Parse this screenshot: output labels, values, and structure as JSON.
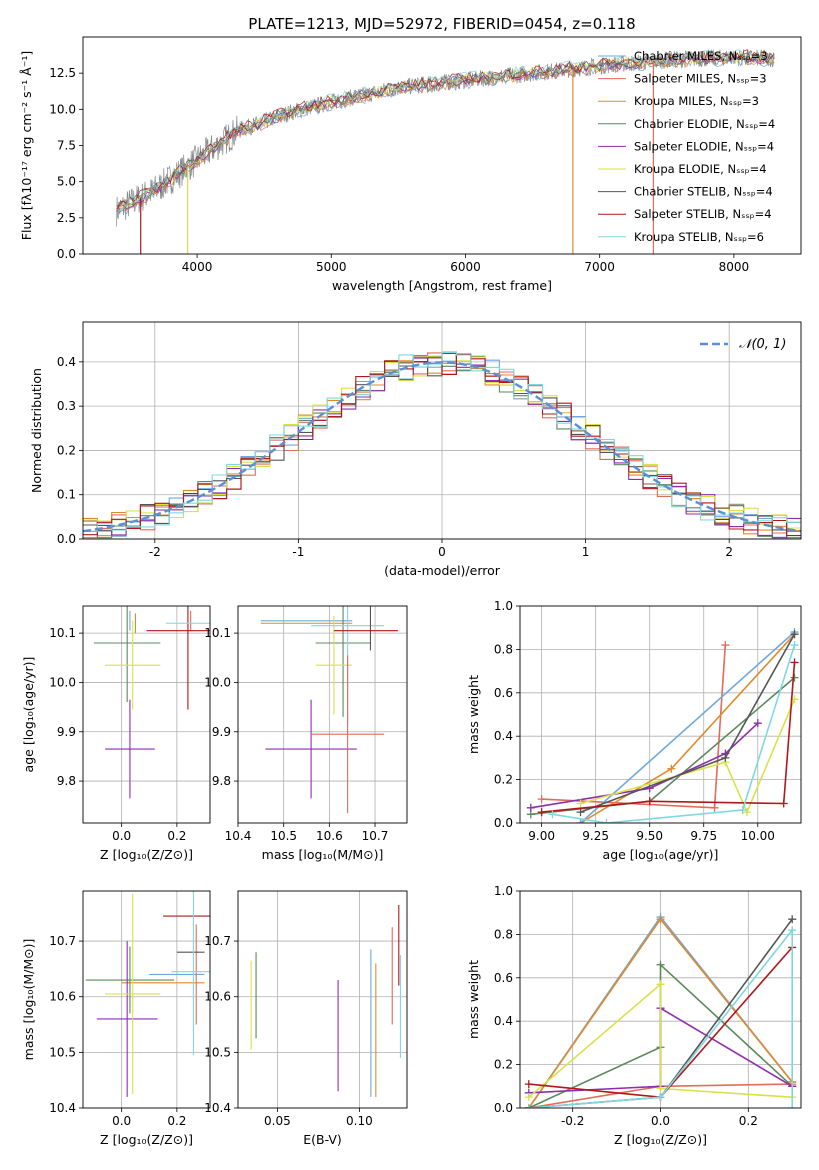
{
  "title": "PLATE=1213, MJD=52972, FIBERID=0454, z=0.118",
  "colors": {
    "Chabrier MILES": "#6fa8dc",
    "Salpeter MILES": "#e06c5a",
    "Kroupa MILES": "#e08a2a",
    "Chabrier ELODIE": "#5b8a5b",
    "Salpeter ELODIE": "#8e2db0",
    "Kroupa ELODIE": "#d8e24a",
    "Chabrier STELIB": "#555555",
    "Salpeter STELIB": "#b0181c",
    "Kroupa STELIB": "#7fd8e0",
    "gauss": "#5b8fd6",
    "data": "#888888"
  },
  "chart_data": [
    {
      "type": "line",
      "panel": "spectrum",
      "xlabel": "wavelength [Angstrom, rest frame]",
      "ylabel": "Flux [fλ10⁻¹⁷ erg cm⁻² s⁻¹ Å⁻¹]",
      "xlim": [
        3150,
        8500
      ],
      "ylim": [
        0,
        15
      ],
      "xticks": [
        4000,
        5000,
        6000,
        7000,
        8000
      ],
      "yticks": [
        0.0,
        2.5,
        5.0,
        7.5,
        10.0,
        12.5
      ],
      "legend_position": "upper-right",
      "series": [
        {
          "name": "Chabrier MILES, Nₛₛₚ=3",
          "model": "Chabrier MILES"
        },
        {
          "name": "Salpeter MILES, Nₛₛₚ=3",
          "model": "Salpeter MILES"
        },
        {
          "name": "Kroupa MILES, Nₛₛₚ=3",
          "model": "Kroupa MILES"
        },
        {
          "name": "Chabrier ELODIE, Nₛₛₚ=4",
          "model": "Chabrier ELODIE"
        },
        {
          "name": "Salpeter ELODIE, Nₛₛₚ=4",
          "model": "Salpeter ELODIE"
        },
        {
          "name": "Kroupa ELODIE, Nₛₛₚ=4",
          "model": "Kroupa ELODIE"
        },
        {
          "name": "Chabrier STELIB, Nₛₛₚ=4",
          "model": "Chabrier STELIB"
        },
        {
          "name": "Salpeter STELIB, Nₛₛₚ=4",
          "model": "Salpeter STELIB"
        },
        {
          "name": "Kroupa STELIB, Nₛₛₚ=6",
          "model": "Kroupa STELIB"
        }
      ],
      "continuum": {
        "x": [
          3400,
          3700,
          4000,
          4300,
          4700,
          5000,
          5500,
          6000,
          6500,
          7000,
          7500,
          8000,
          8300
        ],
        "y": [
          3.0,
          4.5,
          6.5,
          8.5,
          9.8,
          10.5,
          11.5,
          12.0,
          12.5,
          13.0,
          13.4,
          13.6,
          13.5
        ]
      },
      "dips": [
        {
          "x": 3580,
          "model": "Salpeter STELIB"
        },
        {
          "x": 3930,
          "model": "Kroupa ELODIE"
        },
        {
          "x": 6800,
          "model": "Kroupa MILES"
        },
        {
          "x": 7400,
          "model": "Salpeter MILES"
        }
      ]
    },
    {
      "type": "bar",
      "panel": "residuals",
      "xlabel": "(data-model)/error",
      "ylabel": "Normed distribution",
      "xlim": [
        -2.5,
        2.5
      ],
      "ylim": [
        0,
        0.49
      ],
      "xticks": [
        -2,
        -1,
        0,
        1,
        2
      ],
      "yticks": [
        0.0,
        0.1,
        0.2,
        0.3,
        0.4
      ],
      "legend": "𝒩(0, 1)",
      "legend_position": "upper-right",
      "bin_width": 0.1
    },
    {
      "type": "scatter",
      "panel": "age-vs-Z",
      "xlabel": "Z [log₁₀(Z/Z⊙)]",
      "ylabel": "age  [log₁₀(age/yr)]",
      "xlim": [
        -0.14,
        0.32
      ],
      "ylim": [
        9.715,
        10.155
      ],
      "xticks": [
        0.0,
        0.2
      ],
      "yticks": [
        9.8,
        9.9,
        10.0,
        10.1
      ],
      "points": [
        {
          "model": "Chabrier MILES",
          "x": 0.03,
          "xerr": 0.0,
          "y": 10.125,
          "yerr": 0.02
        },
        {
          "model": "Salpeter MILES",
          "x": 0.25,
          "xerr": 0.0,
          "y": 10.125,
          "yerr": 0.02
        },
        {
          "model": "Kroupa MILES",
          "x": 0.05,
          "xerr": 0.0,
          "y": 10.12,
          "yerr": 0.02
        },
        {
          "model": "Chabrier ELODIE",
          "x": 0.02,
          "xerr": 0.12,
          "y": 10.08,
          "yerr": 0.12
        },
        {
          "model": "Salpeter ELODIE",
          "x": 0.03,
          "xerr": 0.09,
          "y": 9.865,
          "yerr": 0.1
        },
        {
          "model": "Kroupa ELODIE",
          "x": 0.04,
          "xerr": 0.1,
          "y": 10.035,
          "yerr": 0.09
        },
        {
          "model": "Chabrier STELIB",
          "x": 0.25,
          "xerr": 0.0,
          "y": 10.12,
          "yerr": 0.0
        },
        {
          "model": "Salpeter STELIB",
          "x": 0.24,
          "xerr": 0.15,
          "y": 10.105,
          "yerr": 0.16
        },
        {
          "model": "Kroupa STELIB",
          "x": 0.28,
          "xerr": 0.12,
          "y": 10.12,
          "yerr": 0.0
        }
      ]
    },
    {
      "type": "scatter",
      "panel": "age-vs-mass",
      "xlabel": "mass [log₁₀(M/M⊙)]",
      "ylabel": "",
      "xlim": [
        10.4,
        10.77
      ],
      "ylim": [
        9.715,
        10.155
      ],
      "xticks": [
        10.4,
        10.5,
        10.6,
        10.7
      ],
      "yticks": [
        9.8,
        9.9,
        10.0,
        10.1
      ],
      "points": [
        {
          "model": "Chabrier MILES",
          "x": 10.55,
          "xerr": 0.1,
          "y": 10.125,
          "yerr": 0.0
        },
        {
          "model": "Kroupa MILES",
          "x": 10.55,
          "xerr": 0.1,
          "y": 10.12,
          "yerr": 0.0
        },
        {
          "model": "Chabrier ELODIE",
          "x": 10.63,
          "xerr": 0.06,
          "y": 10.08,
          "yerr": 0.15
        },
        {
          "model": "Salpeter ELODIE",
          "x": 10.56,
          "xerr": 0.1,
          "y": 9.865,
          "yerr": 0.1
        },
        {
          "model": "Kroupa ELODIE",
          "x": 10.61,
          "xerr": 0.04,
          "y": 10.035,
          "yerr": 0.1
        },
        {
          "model": "Kroupa STELIB",
          "x": 10.64,
          "xerr": 0.08,
          "y": 10.115,
          "yerr": 0.2
        },
        {
          "model": "Chabrier STELIB",
          "x": 10.69,
          "xerr": 0.0,
          "y": 10.125,
          "yerr": 0.06
        },
        {
          "model": "Salpeter STELIB",
          "x": 10.68,
          "xerr": 0.07,
          "y": 10.105,
          "yerr": 0.0
        },
        {
          "model": "Salpeter MILES",
          "x": 10.64,
          "xerr": 0.08,
          "y": 9.895,
          "yerr": 0.16
        }
      ]
    },
    {
      "type": "line",
      "panel": "weight-vs-age",
      "xlabel": "age  [log₁₀(age/yr)]",
      "ylabel": "mass weight",
      "xlim": [
        8.9,
        10.2
      ],
      "ylim": [
        0,
        1
      ],
      "xticks": [
        9.0,
        9.25,
        9.5,
        9.75,
        10.0
      ],
      "yticks": [
        0.0,
        0.2,
        0.4,
        0.6,
        0.8,
        1.0
      ],
      "series": [
        {
          "model": "Salpeter MILES",
          "x": [
            9.0,
            9.8,
            9.85
          ],
          "y": [
            0.11,
            0.07,
            0.82
          ]
        },
        {
          "model": "Kroupa MILES",
          "x": [
            9.18,
            9.6,
            10.17
          ],
          "y": [
            0.0,
            0.25,
            0.87
          ]
        },
        {
          "model": "Chabrier MILES",
          "x": [
            9.18,
            10.17
          ],
          "y": [
            0.0,
            0.88
          ]
        },
        {
          "model": "Chabrier ELODIE",
          "x": [
            8.95,
            9.5,
            10.17
          ],
          "y": [
            0.04,
            0.1,
            0.67
          ]
        },
        {
          "model": "Salpeter ELODIE",
          "x": [
            8.95,
            9.5,
            9.85,
            10.0
          ],
          "y": [
            0.07,
            0.16,
            0.32,
            0.46
          ]
        },
        {
          "model": "Kroupa ELODIE",
          "x": [
            9.18,
            9.85,
            9.95,
            10.17
          ],
          "y": [
            0.09,
            0.28,
            0.05,
            0.57
          ]
        },
        {
          "model": "Chabrier STELIB",
          "x": [
            9.18,
            9.85,
            10.17
          ],
          "y": [
            0.05,
            0.3,
            0.87
          ]
        },
        {
          "model": "Salpeter STELIB",
          "x": [
            9.0,
            9.5,
            10.12,
            10.17
          ],
          "y": [
            0.05,
            0.1,
            0.09,
            0.74
          ]
        },
        {
          "model": "Kroupa STELIB",
          "x": [
            9.05,
            9.3,
            9.93,
            10.17
          ],
          "y": [
            0.04,
            0.0,
            0.06,
            0.82
          ]
        }
      ]
    },
    {
      "type": "scatter",
      "panel": "mass-vs-Z",
      "xlabel": "Z [log₁₀(Z/Z⊙)]",
      "ylabel": "mass [log₁₀(M/M⊙)]",
      "xlim": [
        -0.14,
        0.32
      ],
      "ylim": [
        10.4,
        10.79
      ],
      "xticks": [
        0.0,
        0.2
      ],
      "yticks": [
        10.4,
        10.5,
        10.6,
        10.7
      ],
      "points": [
        {
          "model": "Chabrier MILES",
          "x": 0.2,
          "xerr": 0.1,
          "y": 10.64,
          "yerr": 0.0
        },
        {
          "model": "Salpeter MILES",
          "x": 0.27,
          "xerr": 0.0,
          "y": 10.64,
          "yerr": 0.09
        },
        {
          "model": "Kroupa MILES",
          "x": 0.15,
          "xerr": 0.15,
          "y": 10.625,
          "yerr": 0.0
        },
        {
          "model": "Chabrier ELODIE",
          "x": 0.03,
          "xerr": 0.16,
          "y": 10.63,
          "yerr": 0.06
        },
        {
          "model": "Salpeter ELODIE",
          "x": 0.02,
          "xerr": 0.11,
          "y": 10.56,
          "yerr": 0.14
        },
        {
          "model": "Kroupa ELODIE",
          "x": 0.04,
          "xerr": 0.1,
          "y": 10.605,
          "yerr": 0.18
        },
        {
          "model": "Chabrier STELIB",
          "x": 0.25,
          "xerr": 0.05,
          "y": 10.68,
          "yerr": 0.0
        },
        {
          "model": "Salpeter STELIB",
          "x": 0.25,
          "xerr": 0.1,
          "y": 10.745,
          "yerr": 0.0
        },
        {
          "model": "Kroupa STELIB",
          "x": 0.26,
          "xerr": 0.08,
          "y": 10.645,
          "yerr": 0.15
        }
      ]
    },
    {
      "type": "scatter",
      "panel": "mass-vs-EBV",
      "xlabel": "E(B-V)",
      "ylabel": "",
      "xlim": [
        0.026,
        0.129
      ],
      "ylim": [
        10.4,
        10.79
      ],
      "xticks": [
        0.05,
        0.1
      ],
      "yticks": [
        10.4,
        10.5,
        10.6,
        10.7
      ],
      "points": [
        {
          "model": "Kroupa ELODIE",
          "x": 0.034,
          "yerr": [
            10.505,
            10.665
          ]
        },
        {
          "model": "Chabrier ELODIE",
          "x": 0.037,
          "yerr": [
            10.525,
            10.68
          ]
        },
        {
          "model": "Salpeter ELODIE",
          "x": 0.087,
          "yerr": [
            10.43,
            10.63
          ]
        },
        {
          "model": "Chabrier MILES",
          "x": 0.107,
          "yerr": [
            10.42,
            10.685
          ]
        },
        {
          "model": "Kroupa MILES",
          "x": 0.11,
          "yerr": [
            10.42,
            10.66
          ]
        },
        {
          "model": "Salpeter MILES",
          "x": 0.12,
          "yerr": [
            10.55,
            10.725
          ]
        },
        {
          "model": "Salpeter STELIB",
          "x": 0.124,
          "yerr": [
            10.62,
            10.765
          ]
        },
        {
          "model": "Kroupa STELIB",
          "x": 0.125,
          "yerr": [
            10.49,
            10.675
          ]
        }
      ]
    },
    {
      "type": "line",
      "panel": "weight-vs-Z",
      "xlabel": "Z [log₁₀(Z/Z⊙)]",
      "ylabel": "mass weight",
      "xlim": [
        -0.32,
        0.32
      ],
      "ylim": [
        0,
        1
      ],
      "xticks": [
        -0.2,
        0.0,
        0.2
      ],
      "yticks": [
        0.0,
        0.2,
        0.4,
        0.6,
        0.8,
        1.0
      ],
      "series": [
        {
          "model": "Chabrier MILES",
          "x": [
            -0.3,
            0.0,
            0.3
          ],
          "y": [
            0.0,
            0.88,
            0.12
          ]
        },
        {
          "model": "Kroupa MILES",
          "x": [
            -0.3,
            0.0,
            0.3
          ],
          "y": [
            0.0,
            0.87,
            0.12
          ]
        },
        {
          "model": "Salpeter MILES",
          "x": [
            -0.3,
            0.0,
            0.3
          ],
          "y": [
            0.0,
            0.1,
            0.11
          ]
        },
        {
          "model": "Chabrier ELODIE",
          "x": [
            -0.3,
            0.0,
            0.0,
            0.3
          ],
          "y": [
            0.0,
            0.28,
            0.66,
            0.1
          ]
        },
        {
          "model": "Salpeter ELODIE",
          "x": [
            -0.3,
            0.0,
            0.0,
            0.3
          ],
          "y": [
            0.07,
            0.1,
            0.46,
            0.1
          ]
        },
        {
          "model": "Kroupa ELODIE",
          "x": [
            -0.3,
            0.0,
            0.0,
            0.3
          ],
          "y": [
            0.05,
            0.57,
            0.09,
            0.05
          ]
        },
        {
          "model": "Chabrier STELIB",
          "x": [
            -0.3,
            0.0,
            0.3
          ],
          "y": [
            0.0,
            0.05,
            0.87
          ]
        },
        {
          "model": "Salpeter STELIB",
          "x": [
            -0.3,
            0.0,
            0.3
          ],
          "y": [
            0.11,
            0.05,
            0.74
          ]
        },
        {
          "model": "Kroupa STELIB",
          "x": [
            -0.3,
            0.0,
            0.3,
            0.3
          ],
          "y": [
            0.0,
            0.05,
            0.82,
            0.0
          ]
        }
      ]
    }
  ]
}
